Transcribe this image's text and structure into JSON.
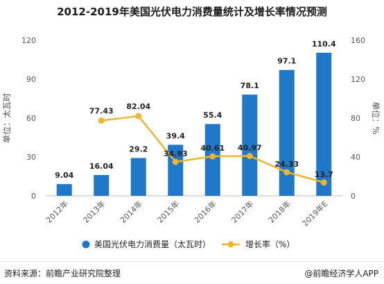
{
  "chart_data": {
    "type": "bar",
    "title": "2012-2019年美国光伏电力消费量统计及增长率情况预测",
    "categories": [
      "2012年",
      "2013年",
      "2014年",
      "2015年",
      "2016年",
      "2017年",
      "2018年",
      "2019年E"
    ],
    "series": [
      {
        "name": "美国光伏电力消费量（太瓦时）",
        "type": "bar",
        "axis": "left",
        "color": "#1f78c8",
        "values": [
          9.04,
          16.04,
          29.2,
          39.4,
          55.4,
          78.1,
          97.1,
          110.4
        ],
        "labels": [
          "9.04",
          "16.04",
          "29.2",
          "39.4",
          "55.4",
          "78.1",
          "97.1",
          "110.4"
        ]
      },
      {
        "name": "增长率（%）",
        "type": "line",
        "axis": "right",
        "color": "#f0b528",
        "values": [
          null,
          77.43,
          82.04,
          34.93,
          40.61,
          40.97,
          24.33,
          13.7
        ],
        "labels": [
          "",
          "77.43",
          "82.04",
          "34.93",
          "40.61",
          "40.97",
          "24.33",
          "13.7"
        ]
      }
    ],
    "ylabel_left": "单位：太瓦时",
    "ylabel_right": "单位：%",
    "ylim_left": [
      0,
      120
    ],
    "ylim_right": [
      0,
      160
    ],
    "yticks_left": [
      0,
      30,
      60,
      90,
      120
    ],
    "yticks_right": [
      0,
      40,
      80,
      120,
      160
    ],
    "grid": false,
    "legend_position": "bottom"
  },
  "footer": {
    "source": "资料来源：前瞻产业研究院整理",
    "credit": "@前瞻经济学人APP"
  }
}
